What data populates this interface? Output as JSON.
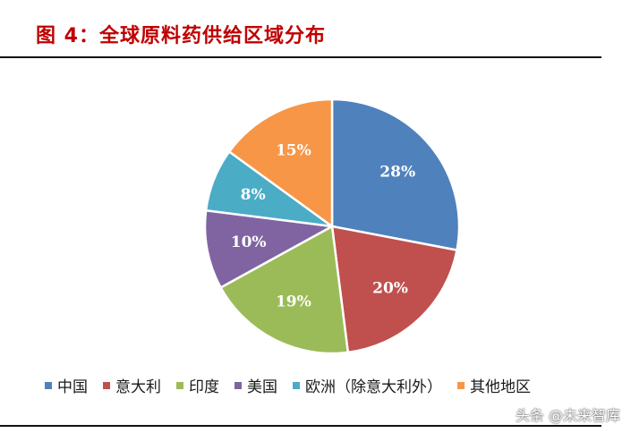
{
  "figure_title": "图 4：全球原料药供给区域分布",
  "watermark": "头条 @未来智库",
  "chart_data": {
    "type": "pie",
    "title": "",
    "categories": [
      "中国",
      "意大利",
      "印度",
      "美国",
      "欧洲（除意大利外）",
      "其他地区"
    ],
    "values": [
      28,
      20,
      19,
      10,
      8,
      15
    ],
    "labels": [
      "28%",
      "20%",
      "19%",
      "10%",
      "8%",
      "15%"
    ],
    "colors": [
      "#4F81BD",
      "#C0504D",
      "#9BBB59",
      "#8064A2",
      "#4BACC6",
      "#F79646"
    ],
    "start_angle": "12 o'clock",
    "direction": "clockwise",
    "legend_position": "bottom"
  }
}
